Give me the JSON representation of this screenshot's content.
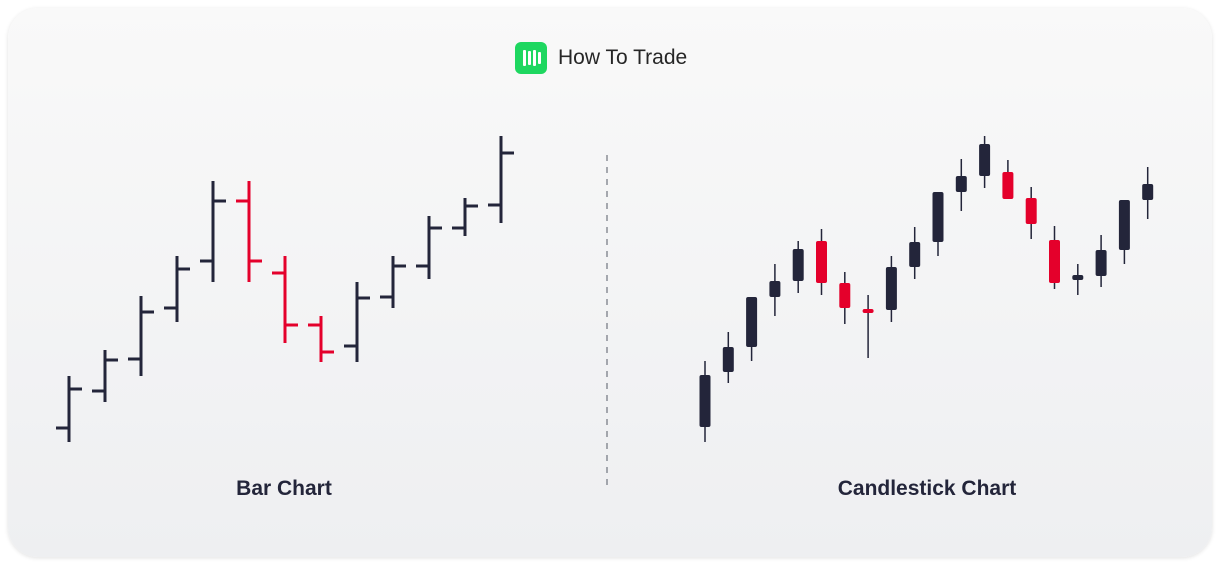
{
  "brand": {
    "name": "How To Trade",
    "logo_color": "#1ed760"
  },
  "colors": {
    "up": "#23253a",
    "down": "#e4002b"
  },
  "chart_data": [
    {
      "type": "ohlc-bar",
      "title": "Bar Chart",
      "columns": [
        "open",
        "high",
        "low",
        "close"
      ],
      "bars": [
        [
          143,
          195,
          129,
          182
        ],
        [
          180,
          221,
          169,
          211
        ],
        [
          212,
          275,
          195,
          259
        ],
        [
          263,
          315,
          249,
          302
        ],
        [
          310,
          390,
          289,
          370
        ],
        [
          370,
          390,
          289,
          310
        ],
        [
          298,
          315,
          228,
          246
        ],
        [
          246,
          255,
          209,
          219
        ],
        [
          225,
          289,
          209,
          273
        ],
        [
          274,
          315,
          263,
          305
        ],
        [
          305,
          355,
          292,
          343
        ],
        [
          343,
          373,
          335,
          365
        ],
        [
          366,
          435,
          348,
          418
        ]
      ]
    },
    {
      "type": "candlestick",
      "title": "Candlestick Chart",
      "columns": [
        "open",
        "high",
        "low",
        "close"
      ],
      "bars": [
        [
          144,
          210,
          129,
          196
        ],
        [
          199,
          239,
          188,
          224
        ],
        [
          224,
          274,
          210,
          274
        ],
        [
          274,
          307,
          255,
          290
        ],
        [
          290,
          330,
          278,
          322
        ],
        [
          330,
          342,
          276,
          288
        ],
        [
          288,
          299,
          247,
          263
        ],
        [
          262,
          276,
          213,
          258
        ],
        [
          261,
          315,
          249,
          304
        ],
        [
          304,
          344,
          292,
          329
        ],
        [
          329,
          379,
          315,
          379
        ],
        [
          379,
          412,
          360,
          395
        ],
        [
          395,
          435,
          383,
          427
        ],
        [
          399,
          411,
          372,
          372
        ],
        [
          373,
          384,
          332,
          347
        ],
        [
          331,
          345,
          282,
          288
        ],
        [
          291,
          307,
          276,
          296
        ],
        [
          295,
          336,
          284,
          321
        ],
        [
          321,
          371,
          307,
          371
        ],
        [
          371,
          404,
          352,
          387
        ]
      ]
    }
  ]
}
